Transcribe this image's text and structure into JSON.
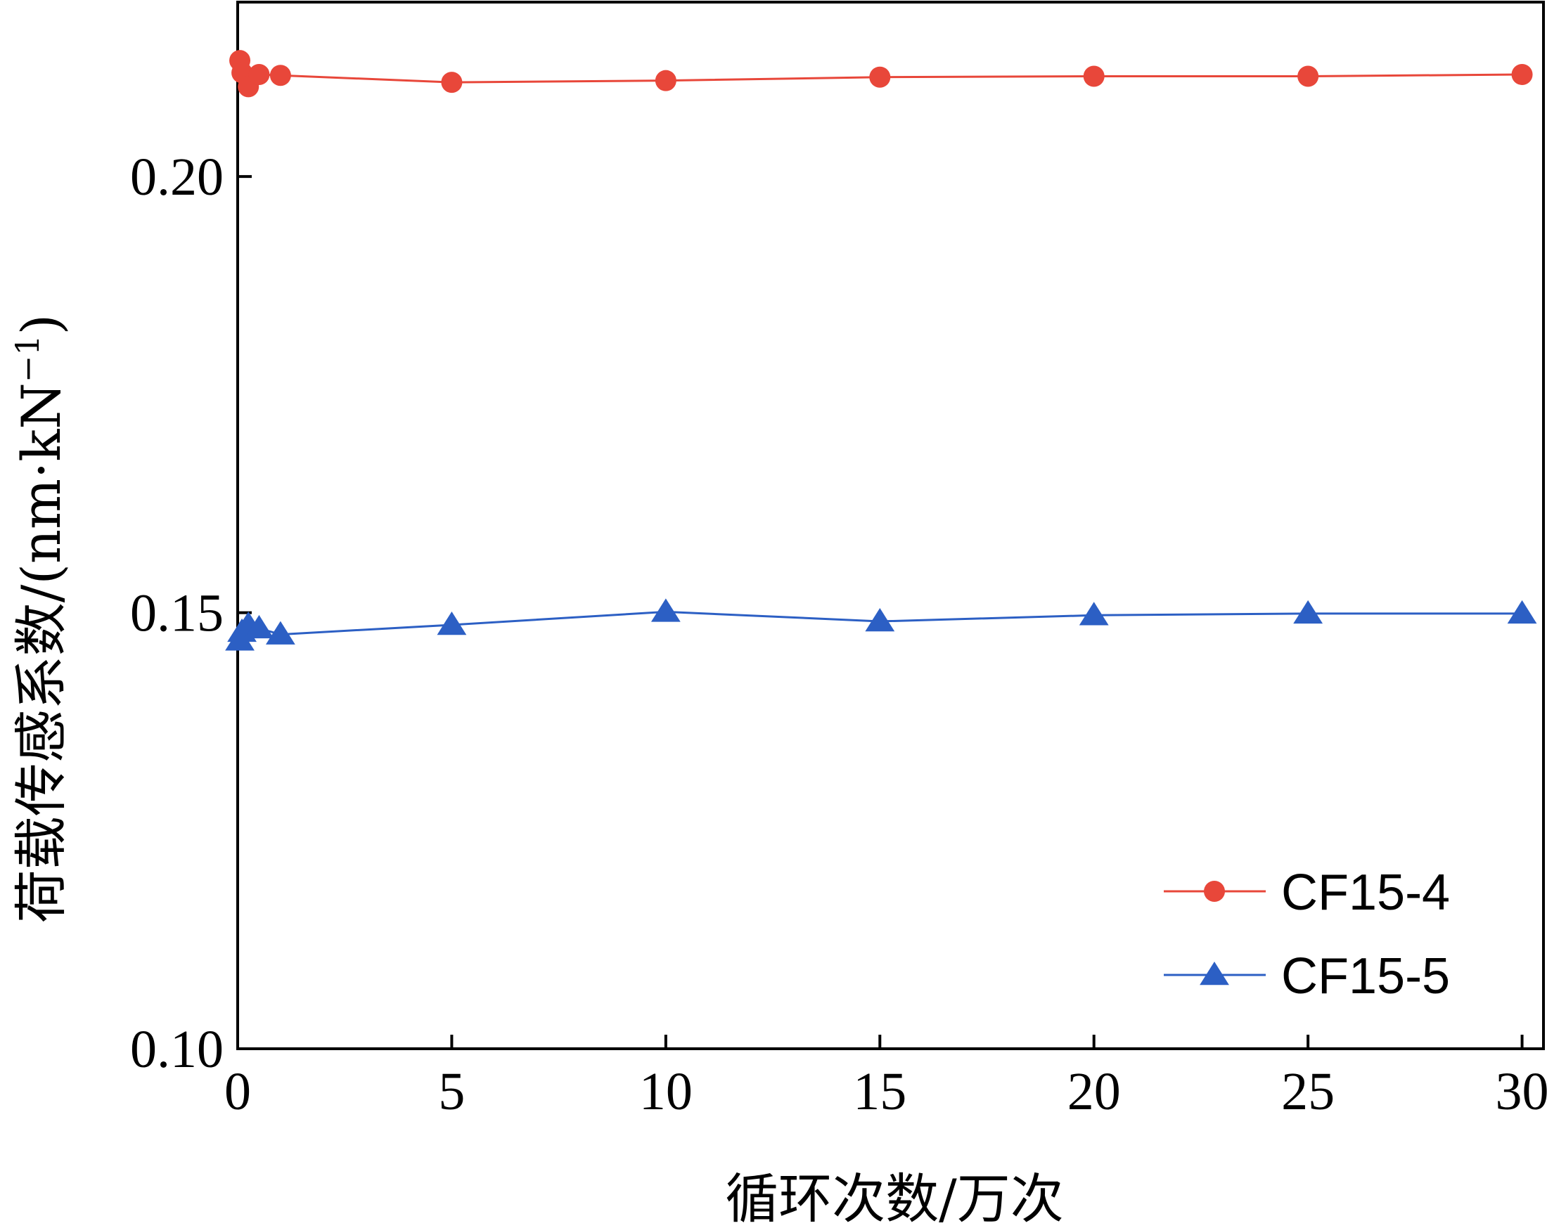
{
  "chart_data": {
    "type": "line",
    "title": "",
    "xlabel": "循环次数/万次",
    "ylabel_main": "荷载传感系数/(nm·kN",
    "ylabel_sup": "−1",
    "ylabel_close": ")",
    "xlim": [
      0,
      30.5
    ],
    "ylim": [
      0.1,
      0.22
    ],
    "xticks": [
      0,
      5,
      10,
      15,
      20,
      25,
      30
    ],
    "xtick_labels": [
      "0",
      "5",
      "10",
      "15",
      "20",
      "25",
      "30"
    ],
    "yticks": [
      0.1,
      0.15,
      0.2
    ],
    "ytick_labels": [
      "0.10",
      "0.15",
      "0.20"
    ],
    "grid": false,
    "legend_position": "bottom-right",
    "series": [
      {
        "name": "CF15-4",
        "color": "#e8473a",
        "marker": "circle",
        "x": [
          0.05,
          0.1,
          0.25,
          0.5,
          1,
          5,
          10,
          15,
          20,
          25,
          30
        ],
        "y": [
          0.2133,
          0.2119,
          0.2103,
          0.2117,
          0.2116,
          0.2108,
          0.211,
          0.2114,
          0.2115,
          0.2115,
          0.2117
        ]
      },
      {
        "name": "CF15-5",
        "color": "#2c5fc4",
        "marker": "triangle",
        "x": [
          0.05,
          0.1,
          0.25,
          0.5,
          1,
          5,
          10,
          15,
          20,
          25,
          30
        ],
        "y": [
          0.1468,
          0.1478,
          0.1486,
          0.1482,
          0.1475,
          0.1486,
          0.1501,
          0.149,
          0.1497,
          0.1499,
          0.1499
        ]
      }
    ]
  }
}
